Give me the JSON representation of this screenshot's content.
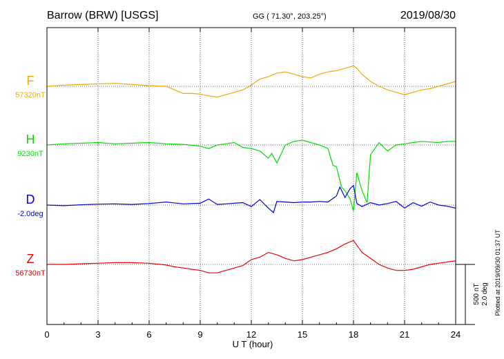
{
  "header": {
    "station": "Barrow (BRW)  [USGS]",
    "coords": "GG ( 71.30°, 203.25°)",
    "date": "2019/08/30"
  },
  "plotted_note": "Plotted at 2019/09/30 01:37 UT",
  "scale_bar": {
    "line1": "500 nT",
    "line2": "2.0 deg"
  },
  "chart_data": {
    "type": "line",
    "xlabel": "U T (hour)",
    "xlim": [
      0,
      24
    ],
    "xticks": [
      0,
      3,
      6,
      9,
      12,
      15,
      18,
      21,
      24
    ],
    "grid": true,
    "scale_per_bar": {
      "nT": 500,
      "deg": 2.0
    },
    "series": [
      {
        "name": "F",
        "baseline_label": "57320nT",
        "baseline": 57320,
        "unit": "nT",
        "color": "#f2a900",
        "x": [
          0,
          1,
          2,
          3,
          4,
          5,
          6,
          7,
          7.5,
          8,
          8.5,
          9,
          9.5,
          10,
          10.5,
          11,
          11.5,
          12,
          12.3,
          12.5,
          13,
          13.5,
          14,
          14.5,
          15,
          15.5,
          16,
          16.5,
          17,
          17.5,
          18,
          18.2,
          18.5,
          19,
          19.5,
          20,
          20.5,
          21,
          21.5,
          22,
          22.5,
          23,
          23.5,
          24
        ],
        "y": [
          57320,
          57330,
          57335,
          57340,
          57345,
          57335,
          57325,
          57320,
          57290,
          57260,
          57260,
          57255,
          57240,
          57230,
          57250,
          57270,
          57290,
          57330,
          57360,
          57380,
          57400,
          57430,
          57440,
          57420,
          57400,
          57390,
          57420,
          57440,
          57450,
          57470,
          57490,
          57470,
          57420,
          57360,
          57320,
          57290,
          57270,
          57250,
          57270,
          57290,
          57300,
          57320,
          57340,
          57360
        ]
      },
      {
        "name": "H",
        "baseline_label": "9230nT",
        "baseline": 9230,
        "unit": "nT",
        "color": "#00dd00",
        "x": [
          0,
          1,
          2,
          3,
          4,
          5,
          6,
          7,
          8,
          9,
          9.5,
          10,
          10.5,
          11,
          11.5,
          12,
          12.5,
          13,
          13.2,
          13.5,
          14,
          14.5,
          15,
          15.5,
          16,
          16.5,
          16.8,
          17,
          17.3,
          17.5,
          17.8,
          18,
          18.2,
          18.5,
          18.8,
          19,
          19.5,
          20,
          20.5,
          21,
          21.5,
          22,
          22.5,
          23,
          23.5,
          24
        ],
        "y": [
          9230,
          9240,
          9245,
          9250,
          9240,
          9245,
          9250,
          9240,
          9235,
          9220,
          9200,
          9230,
          9240,
          9250,
          9210,
          9200,
          9180,
          9120,
          9160,
          9080,
          9230,
          9260,
          9270,
          9250,
          9230,
          9200,
          9060,
          9050,
          8880,
          8850,
          8780,
          8680,
          9000,
          8850,
          8750,
          9150,
          9250,
          9180,
          9230,
          9240,
          9250,
          9260,
          9255,
          9250,
          9260,
          9260
        ]
      },
      {
        "name": "D",
        "baseline_label": "-2.0deg",
        "baseline": -2.0,
        "unit": "deg",
        "color": "#0000dd",
        "x": [
          0,
          1,
          2,
          3,
          4,
          5,
          6,
          7,
          8,
          9,
          9.5,
          10,
          10.5,
          11,
          11.5,
          12,
          12.5,
          13,
          13.3,
          13.5,
          14,
          14.5,
          15,
          15.5,
          16,
          16.5,
          17,
          17.2,
          17.5,
          17.8,
          18,
          18.2,
          18.5,
          19,
          19.5,
          20,
          20.5,
          21,
          21.5,
          22,
          22.5,
          23,
          23.5,
          24
        ],
        "y": [
          -2.0,
          -2.02,
          -1.99,
          -1.97,
          -1.96,
          -1.98,
          -1.95,
          -1.9,
          -1.96,
          -1.94,
          -1.8,
          -1.98,
          -1.96,
          -1.94,
          -1.92,
          -2.05,
          -1.82,
          -2.1,
          -2.25,
          -1.88,
          -1.9,
          -1.92,
          -1.9,
          -1.9,
          -1.88,
          -1.9,
          -1.7,
          -1.4,
          -1.75,
          -1.45,
          -1.35,
          -1.95,
          -2.05,
          -1.92,
          -2.0,
          -1.95,
          -1.88,
          -2.1,
          -1.92,
          -2.04,
          -1.9,
          -2.0,
          -2.04,
          -2.1
        ]
      },
      {
        "name": "Z",
        "baseline_label": "56730nT",
        "baseline": 56730,
        "unit": "nT",
        "color": "#ee0000",
        "x": [
          0,
          1,
          2,
          3,
          4,
          5,
          6,
          7,
          7.5,
          8,
          8.5,
          9,
          9.5,
          10,
          10.5,
          11,
          11.5,
          12,
          12.5,
          13,
          13.5,
          14,
          14.5,
          15,
          15.5,
          16,
          16.5,
          17,
          17.5,
          18,
          18.2,
          18.5,
          19,
          19.5,
          20,
          20.5,
          21,
          21.5,
          22,
          22.5,
          23,
          23.5,
          24
        ],
        "y": [
          56730,
          56730,
          56735,
          56740,
          56745,
          56745,
          56740,
          56725,
          56710,
          56700,
          56690,
          56680,
          56660,
          56660,
          56680,
          56700,
          56720,
          56770,
          56790,
          56830,
          56810,
          56780,
          56760,
          56770,
          56790,
          56810,
          56830,
          56860,
          56900,
          56930,
          56890,
          56830,
          56780,
          56730,
          56700,
          56680,
          56680,
          56690,
          56710,
          56730,
          56740,
          56750,
          56760
        ]
      }
    ]
  }
}
